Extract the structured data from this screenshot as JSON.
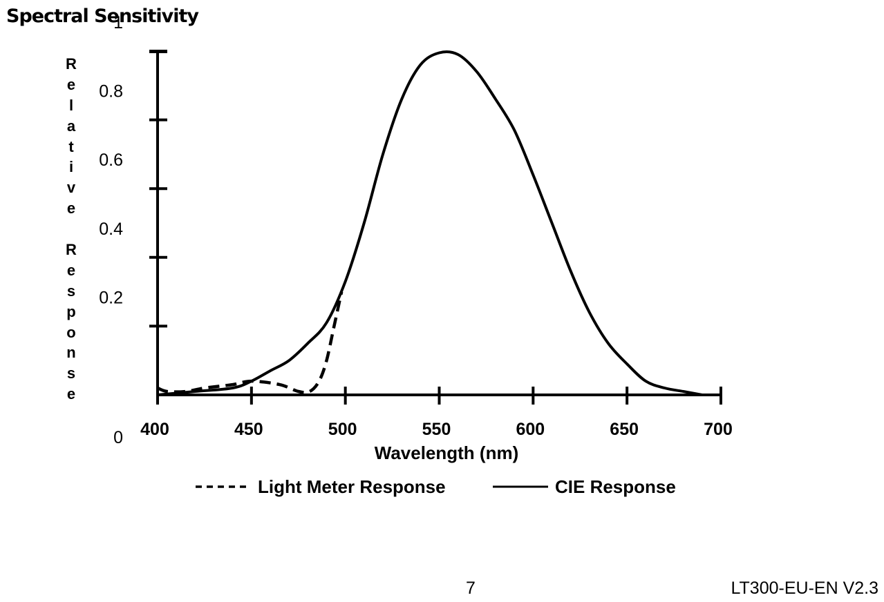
{
  "page": {
    "section_title": "Spectral Sensitivity",
    "page_number": "7",
    "doc_id": "LT300-EU-EN V2.3"
  },
  "chart_data": {
    "type": "line",
    "xlabel": "Wavelength (nm)",
    "ylabel": "Relative Response",
    "xlim": [
      400,
      700
    ],
    "ylim": [
      0,
      1.1
    ],
    "x_ticks": [
      400,
      450,
      500,
      550,
      600,
      650,
      700
    ],
    "x_tick_labels": [
      "400",
      "450",
      "500",
      "550",
      "600",
      "650",
      "700"
    ],
    "y_ticks": [
      0,
      0.2,
      0.4,
      0.6,
      0.8,
      1
    ],
    "y_tick_labels": [
      "0",
      "0.2",
      "0.4",
      "0.6",
      "0.8",
      "1"
    ],
    "legend_position": "bottom",
    "grid": false,
    "series": [
      {
        "name": "Light Meter Response",
        "style": "dashed",
        "color": "#000000",
        "points": [
          [
            400,
            0.02
          ],
          [
            405,
            0.01
          ],
          [
            415,
            0.01
          ],
          [
            425,
            0.02
          ],
          [
            440,
            0.03
          ],
          [
            450,
            0.04
          ],
          [
            465,
            0.03
          ],
          [
            475,
            0.01
          ],
          [
            481,
            0.01
          ],
          [
            486,
            0.04
          ],
          [
            490,
            0.1
          ],
          [
            494,
            0.2
          ],
          [
            498,
            0.3
          ]
        ]
      },
      {
        "name": "CIE Response",
        "style": "solid",
        "color": "#000000",
        "points": [
          [
            400,
            0.0
          ],
          [
            420,
            0.01
          ],
          [
            440,
            0.02
          ],
          [
            450,
            0.04
          ],
          [
            460,
            0.07
          ],
          [
            470,
            0.1
          ],
          [
            480,
            0.15
          ],
          [
            490,
            0.21
          ],
          [
            500,
            0.33
          ],
          [
            510,
            0.5
          ],
          [
            520,
            0.7
          ],
          [
            530,
            0.86
          ],
          [
            540,
            0.96
          ],
          [
            550,
            0.995
          ],
          [
            560,
            0.99
          ],
          [
            570,
            0.94
          ],
          [
            580,
            0.86
          ],
          [
            590,
            0.77
          ],
          [
            600,
            0.64
          ],
          [
            610,
            0.5
          ],
          [
            620,
            0.36
          ],
          [
            630,
            0.24
          ],
          [
            640,
            0.15
          ],
          [
            650,
            0.09
          ],
          [
            660,
            0.04
          ],
          [
            670,
            0.02
          ],
          [
            680,
            0.01
          ],
          [
            690,
            0.0
          ]
        ]
      }
    ]
  }
}
